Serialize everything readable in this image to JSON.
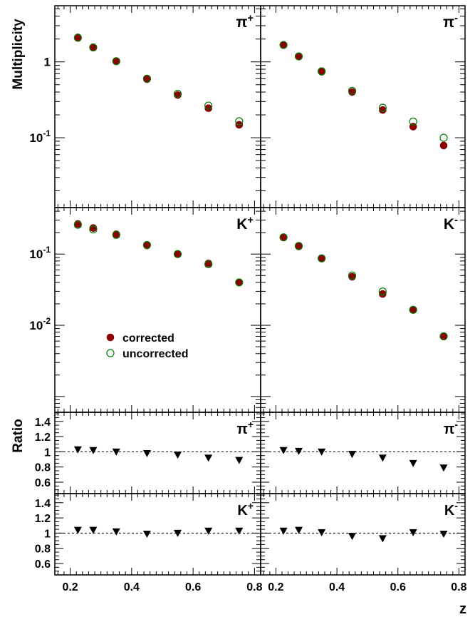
{
  "chart_data": {
    "type": "scatter",
    "x_axis": {
      "label": "z",
      "ticks": [
        0.2,
        0.4,
        0.6,
        0.8
      ],
      "tick_labels": [
        "0.2",
        "0.4",
        "0.6",
        "0.8"
      ],
      "range": [
        0.15,
        0.82
      ]
    },
    "legend": {
      "placement": "inside middle-left panel, lower-left",
      "entries": [
        {
          "label": "corrected",
          "marker": "filled-circle",
          "color": "#8B0000"
        },
        {
          "label": "uncorrected",
          "marker": "open-circle",
          "color": "#007A00"
        }
      ]
    },
    "multiplicity": {
      "ylabel": "Multiplicity",
      "log_scale": true,
      "rows": [
        {
          "ylim": [
            0.012,
            5.5
          ],
          "yticks": [
            {
              "value": 1,
              "label": "1"
            },
            {
              "value": 0.1,
              "label": "10^-1",
              "base": "10",
              "exp": "-1"
            }
          ],
          "panels": [
            {
              "particle": "π",
              "charge": "+",
              "x": [
                0.225,
                0.275,
                0.35,
                0.45,
                0.55,
                0.65,
                0.75
              ],
              "corrected": [
                2.1,
                1.55,
                1.02,
                0.59,
                0.365,
                0.245,
                0.148
              ],
              "uncorrected": [
                2.08,
                1.55,
                1.02,
                0.6,
                0.38,
                0.265,
                0.165
              ]
            },
            {
              "particle": "π",
              "charge": "-",
              "x": [
                0.225,
                0.275,
                0.35,
                0.45,
                0.55,
                0.65,
                0.75
              ],
              "corrected": [
                1.67,
                1.18,
                0.74,
                0.4,
                0.232,
                0.14,
                0.079
              ],
              "uncorrected": [
                1.67,
                1.18,
                0.75,
                0.415,
                0.248,
                0.163,
                0.1
              ]
            }
          ]
        },
        {
          "ylim": [
            0.0006,
            0.45
          ],
          "yticks": [
            {
              "value": 0.1,
              "label": "10^-1",
              "base": "10",
              "exp": "-1"
            },
            {
              "value": 0.01,
              "label": "10^-2",
              "base": "10",
              "exp": "-2"
            }
          ],
          "panels": [
            {
              "particle": "K",
              "charge": "+",
              "x": [
                0.225,
                0.275,
                0.35,
                0.45,
                0.55,
                0.65,
                0.75
              ],
              "corrected": [
                0.265,
                0.232,
                0.19,
                0.132,
                0.1,
                0.074,
                0.04
              ],
              "uncorrected": [
                0.258,
                0.222,
                0.186,
                0.134,
                0.1,
                0.072,
                0.04
              ]
            },
            {
              "particle": "K",
              "charge": "-",
              "x": [
                0.225,
                0.275,
                0.35,
                0.45,
                0.55,
                0.65,
                0.75
              ],
              "corrected": [
                0.172,
                0.128,
                0.087,
                0.048,
                0.0275,
                0.0165,
                0.007
              ],
              "uncorrected": [
                0.172,
                0.13,
                0.087,
                0.05,
                0.0298,
                0.0165,
                0.007
              ]
            }
          ]
        }
      ]
    },
    "ratio": {
      "ylabel": "Ratio",
      "log_scale": false,
      "ylim": [
        0.45,
        1.52
      ],
      "yticks": [
        0.6,
        0.8,
        1,
        1.2,
        1.4
      ],
      "ytick_labels": [
        "0.6",
        "0.8",
        "1",
        "1.2",
        "1.4"
      ],
      "reference_line": 1,
      "marker": "filled-down-triangle",
      "rows": [
        {
          "panels": [
            {
              "particle": "π",
              "charge": "+",
              "x": [
                0.225,
                0.275,
                0.35,
                0.45,
                0.55,
                0.65,
                0.75
              ],
              "values": [
                1.03,
                1.02,
                1.0,
                0.98,
                0.96,
                0.92,
                0.89
              ]
            },
            {
              "particle": "π",
              "charge": "-",
              "x": [
                0.225,
                0.275,
                0.35,
                0.45,
                0.55,
                0.65,
                0.75
              ],
              "values": [
                1.02,
                1.01,
                1.0,
                0.97,
                0.92,
                0.85,
                0.79
              ]
            }
          ]
        },
        {
          "panels": [
            {
              "particle": "K",
              "charge": "+",
              "x": [
                0.225,
                0.275,
                0.35,
                0.45,
                0.55,
                0.65,
                0.75
              ],
              "values": [
                1.04,
                1.04,
                1.02,
                0.99,
                1.0,
                1.03,
                1.03
              ]
            },
            {
              "particle": "K",
              "charge": "-",
              "x": [
                0.225,
                0.275,
                0.35,
                0.45,
                0.55,
                0.65,
                0.75
              ],
              "values": [
                1.03,
                1.04,
                1.01,
                0.96,
                0.93,
                1.01,
                0.99
              ]
            }
          ]
        }
      ]
    }
  }
}
